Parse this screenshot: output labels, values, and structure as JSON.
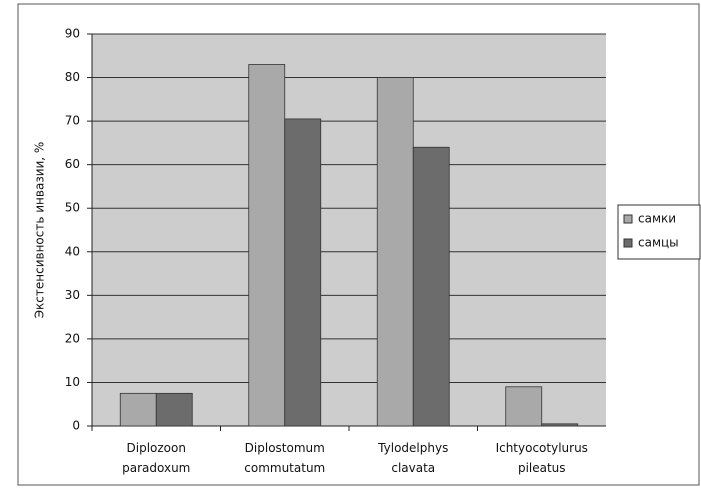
{
  "chart_data": {
    "type": "bar",
    "y_label": "Экстенсивность инвазии, %",
    "categories": [
      "Diplozoon paradoxum",
      "Diplostomum commutatum",
      "Tylodelphys clavata",
      "Ichtyocotylurus pileatus"
    ],
    "series": [
      {
        "name": "самки",
        "color": "#a9a9a9",
        "values": [
          7.5,
          83,
          80,
          9
        ]
      },
      {
        "name": "самцы",
        "color": "#6c6c6c",
        "values": [
          7.5,
          70.5,
          64,
          0.5
        ]
      }
    ],
    "ylim": [
      0,
      90
    ],
    "yticks": [
      0,
      10,
      20,
      30,
      40,
      50,
      60,
      70,
      80,
      90
    ],
    "grid": true,
    "legend": "right"
  }
}
